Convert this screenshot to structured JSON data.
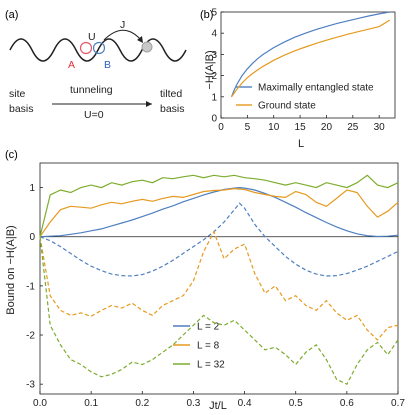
{
  "colors": {
    "L2": "#4f7fc1",
    "L8": "#e69a1f",
    "L32": "#7dac2f",
    "site_A": "#e05a6a",
    "site_B": "#4f7fc1",
    "text_A": "#e0303a",
    "text_B": "#2d5fbf",
    "axis": "#222222",
    "hop_target": "#bfbfbf"
  },
  "panel_a": {
    "label": "(a)",
    "U": "U",
    "J": "J",
    "A": "A",
    "B": "B",
    "left_top": "site",
    "left_bottom": "basis",
    "arrow_top": "tunneling",
    "arrow_bottom": "U=0",
    "right_top": "tilted",
    "right_bottom": "basis"
  },
  "chart_data": [
    {
      "panel": "(b)",
      "type": "line",
      "xlabel": "L",
      "ylabel": "−H(A|B)",
      "xlim": [
        0,
        33
      ],
      "ylim": [
        0,
        5
      ],
      "xticks": [
        0,
        5,
        10,
        15,
        20,
        25,
        30
      ],
      "yticks": [
        0,
        1,
        2,
        3,
        4,
        5
      ],
      "legend": "bottom-right",
      "series": [
        {
          "name": "Maximally entangled state",
          "color_key": "L2",
          "x": [
            2,
            2.5,
            3,
            4,
            5,
            6,
            7,
            8,
            10,
            12,
            14,
            16,
            18,
            20,
            22,
            24,
            26,
            28,
            30,
            32
          ],
          "y": [
            1.0,
            1.32,
            1.58,
            2.0,
            2.32,
            2.58,
            2.81,
            3.0,
            3.32,
            3.58,
            3.81,
            4.0,
            4.17,
            4.32,
            4.46,
            4.58,
            4.7,
            4.81,
            4.91,
            5.0
          ]
        },
        {
          "name": "Ground state",
          "color_key": "L8",
          "x": [
            2,
            2.5,
            3,
            4,
            5,
            6,
            7,
            8,
            10,
            12,
            14,
            16,
            18,
            20,
            22,
            24,
            26,
            28,
            30,
            32
          ],
          "y": [
            1.0,
            1.18,
            1.35,
            1.65,
            1.9,
            2.1,
            2.28,
            2.44,
            2.72,
            2.96,
            3.17,
            3.35,
            3.52,
            3.67,
            3.81,
            3.95,
            4.07,
            4.19,
            4.31,
            4.62
          ]
        }
      ]
    },
    {
      "panel": "(c)",
      "type": "line",
      "xlabel": "Jt/L",
      "ylabel": "Bound on −H(A|B)",
      "xlim": [
        0,
        0.7
      ],
      "ylim": [
        -3.2,
        1.5
      ],
      "xticks": [
        0.0,
        0.1,
        0.2,
        0.3,
        0.4,
        0.5,
        0.6,
        0.7
      ],
      "yticks": [
        -3,
        -2,
        -1,
        0,
        1
      ],
      "legend": "bottom-center",
      "series": [
        {
          "name": "L = 2",
          "color_key": "L2",
          "x": [
            0,
            0.02,
            0.04,
            0.06,
            0.08,
            0.1,
            0.12,
            0.14,
            0.16,
            0.18,
            0.2,
            0.22,
            0.24,
            0.26,
            0.28,
            0.3,
            0.32,
            0.34,
            0.36,
            0.38,
            0.39,
            0.4,
            0.42,
            0.44,
            0.46,
            0.48,
            0.5,
            0.52,
            0.54,
            0.56,
            0.58,
            0.6,
            0.62,
            0.64,
            0.66,
            0.68,
            0.7
          ],
          "upper": [
            0,
            0.01,
            0.02,
            0.05,
            0.08,
            0.12,
            0.16,
            0.22,
            0.28,
            0.34,
            0.41,
            0.48,
            0.56,
            0.63,
            0.71,
            0.78,
            0.85,
            0.91,
            0.96,
            0.99,
            1.0,
            0.99,
            0.95,
            0.88,
            0.8,
            0.7,
            0.6,
            0.49,
            0.39,
            0.29,
            0.2,
            0.12,
            0.06,
            0.02,
            0.005,
            0.01,
            0.03
          ],
          "lower": [
            0,
            -0.08,
            -0.2,
            -0.34,
            -0.48,
            -0.6,
            -0.69,
            -0.76,
            -0.79,
            -0.8,
            -0.77,
            -0.7,
            -0.6,
            -0.48,
            -0.34,
            -0.2,
            -0.06,
            0.1,
            0.3,
            0.55,
            0.68,
            0.58,
            0.25,
            0.0,
            -0.2,
            -0.4,
            -0.56,
            -0.68,
            -0.76,
            -0.8,
            -0.79,
            -0.75,
            -0.68,
            -0.6,
            -0.5,
            -0.4,
            -0.3
          ]
        },
        {
          "name": "L = 8",
          "color_key": "L8",
          "x": [
            0,
            0.02,
            0.04,
            0.06,
            0.08,
            0.1,
            0.12,
            0.14,
            0.16,
            0.18,
            0.2,
            0.22,
            0.24,
            0.26,
            0.28,
            0.3,
            0.32,
            0.34,
            0.36,
            0.38,
            0.4,
            0.42,
            0.44,
            0.46,
            0.48,
            0.5,
            0.52,
            0.54,
            0.56,
            0.58,
            0.6,
            0.62,
            0.64,
            0.66,
            0.68,
            0.7
          ],
          "upper": [
            0,
            0.3,
            0.55,
            0.62,
            0.6,
            0.58,
            0.65,
            0.7,
            0.67,
            0.72,
            0.76,
            0.72,
            0.78,
            0.82,
            0.8,
            0.86,
            0.92,
            0.94,
            0.95,
            0.98,
            0.96,
            0.9,
            0.86,
            0.82,
            0.8,
            0.92,
            0.86,
            0.7,
            0.62,
            0.78,
            0.95,
            0.9,
            0.62,
            0.4,
            0.52,
            0.7
          ],
          "lower": [
            0,
            -1.2,
            -1.5,
            -1.6,
            -1.55,
            -1.62,
            -1.5,
            -1.4,
            -1.45,
            -1.35,
            -1.5,
            -1.6,
            -1.4,
            -1.3,
            -1.2,
            -0.9,
            -0.3,
            0.1,
            -0.45,
            -0.25,
            -0.15,
            -0.75,
            -1.15,
            -1.0,
            -1.3,
            -1.2,
            -1.4,
            -1.5,
            -1.3,
            -1.55,
            -1.7,
            -1.6,
            -1.9,
            -2.1,
            -1.85,
            -1.8
          ]
        },
        {
          "name": "L = 32",
          "color_key": "L32",
          "x": [
            0,
            0.02,
            0.04,
            0.06,
            0.08,
            0.1,
            0.12,
            0.14,
            0.16,
            0.18,
            0.2,
            0.22,
            0.24,
            0.26,
            0.28,
            0.3,
            0.32,
            0.34,
            0.36,
            0.38,
            0.4,
            0.42,
            0.44,
            0.46,
            0.48,
            0.5,
            0.52,
            0.54,
            0.56,
            0.58,
            0.6,
            0.62,
            0.64,
            0.66,
            0.68,
            0.7
          ],
          "upper": [
            0,
            0.85,
            0.95,
            0.9,
            1.0,
            1.05,
            1.0,
            1.1,
            1.05,
            1.12,
            1.15,
            1.1,
            1.2,
            1.18,
            1.22,
            1.25,
            1.2,
            1.25,
            1.22,
            1.25,
            1.2,
            1.18,
            1.15,
            1.1,
            1.05,
            1.1,
            1.05,
            1.0,
            1.1,
            1.05,
            1.0,
            1.1,
            1.25,
            1.05,
            1.0,
            1.1
          ],
          "lower": [
            0,
            -1.8,
            -2.2,
            -2.5,
            -2.6,
            -2.75,
            -2.85,
            -2.8,
            -2.7,
            -2.55,
            -2.6,
            -2.5,
            -2.35,
            -2.2,
            -2.0,
            -1.8,
            -1.6,
            -1.75,
            -1.8,
            -1.7,
            -1.9,
            -2.1,
            -2.3,
            -2.25,
            -2.4,
            -2.6,
            -2.35,
            -2.2,
            -2.5,
            -2.9,
            -3.0,
            -2.6,
            -2.3,
            -2.15,
            -2.4,
            -2.1
          ]
        }
      ]
    }
  ]
}
